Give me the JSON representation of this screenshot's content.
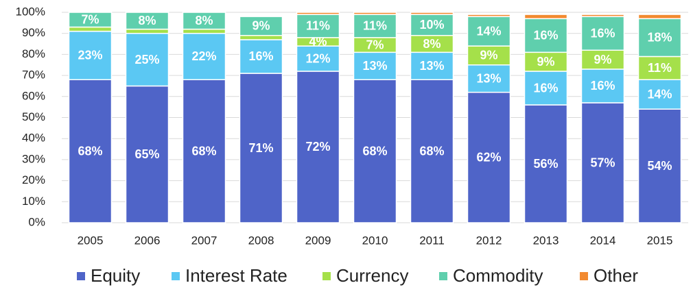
{
  "chart_data": {
    "type": "stacked_bar",
    "categories": [
      "2005",
      "2006",
      "2007",
      "2008",
      "2009",
      "2010",
      "2011",
      "2012",
      "2013",
      "2014",
      "2015"
    ],
    "series": [
      {
        "name": "Equity",
        "color": "#4f64c8",
        "values": [
          68,
          65,
          68,
          71,
          72,
          68,
          68,
          62,
          56,
          57,
          54
        ],
        "value_labels": [
          "68%",
          "65%",
          "68%",
          "71%",
          "72%",
          "68%",
          "68%",
          "62%",
          "56%",
          "57%",
          "54%"
        ]
      },
      {
        "name": "Interest Rate",
        "color": "#5bc8f3",
        "values": [
          23,
          25,
          22,
          16,
          12,
          13,
          13,
          13,
          16,
          16,
          14
        ],
        "value_labels": [
          "23%",
          "25%",
          "22%",
          "16%",
          "12%",
          "13%",
          "13%",
          "13%",
          "16%",
          "16%",
          "14%"
        ]
      },
      {
        "name": "Currency",
        "color": "#a5e04a",
        "values": [
          2,
          2,
          2,
          2,
          4,
          7,
          8,
          9,
          9,
          9,
          11
        ],
        "value_labels": [
          null,
          null,
          null,
          null,
          "4%",
          "7%",
          "8%",
          "9%",
          "9%",
          "9%",
          "11%"
        ]
      },
      {
        "name": "Commodity",
        "color": "#5fcfad",
        "values": [
          7,
          8,
          8,
          9,
          11,
          11,
          10,
          14,
          16,
          16,
          18
        ],
        "value_labels": [
          "7%",
          "8%",
          "8%",
          "9%",
          "11%",
          "11%",
          "10%",
          "14%",
          "16%",
          "16%",
          "18%"
        ]
      },
      {
        "name": "Other",
        "color": "#f28a30",
        "values": [
          0,
          0,
          0,
          0,
          1,
          1,
          1,
          1,
          2,
          1,
          2
        ],
        "value_labels": [
          null,
          null,
          null,
          null,
          null,
          null,
          null,
          null,
          null,
          null,
          null
        ]
      }
    ],
    "ylim": [
      0,
      100
    ],
    "yticks": [
      {
        "value": 0,
        "label": "0%"
      },
      {
        "value": 10,
        "label": "10%"
      },
      {
        "value": 20,
        "label": "20%"
      },
      {
        "value": 30,
        "label": "30%"
      },
      {
        "value": 40,
        "label": "40%"
      },
      {
        "value": 50,
        "label": "50%"
      },
      {
        "value": 60,
        "label": "60%"
      },
      {
        "value": 70,
        "label": "70%"
      },
      {
        "value": 80,
        "label": "80%"
      },
      {
        "value": 90,
        "label": "90%"
      },
      {
        "value": 100,
        "label": "100%"
      }
    ],
    "grid": true,
    "legend": "bottom"
  }
}
